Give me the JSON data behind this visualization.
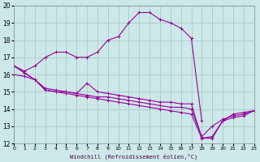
{
  "xlabel": "Windchill (Refroidissement éolien,°C)",
  "xlim": [
    0,
    23
  ],
  "ylim": [
    12,
    20
  ],
  "xticks": [
    0,
    1,
    2,
    3,
    4,
    5,
    6,
    7,
    8,
    9,
    10,
    11,
    12,
    13,
    14,
    15,
    16,
    17,
    18,
    19,
    20,
    21,
    22,
    23
  ],
  "yticks": [
    12,
    13,
    14,
    15,
    16,
    17,
    18,
    19,
    20
  ],
  "bg_color": "#cce8e8",
  "grid_color": "#aacccc",
  "line_color": "#990099",
  "lines": [
    {
      "x": [
        0,
        1,
        2,
        3,
        4,
        5,
        6,
        7,
        8,
        9,
        10,
        11,
        12,
        13,
        14,
        15,
        16,
        17,
        18
      ],
      "y": [
        16.5,
        16.2,
        16.5,
        17.0,
        17.3,
        17.3,
        17.0,
        17.0,
        17.3,
        18.0,
        18.2,
        19.0,
        19.6,
        19.6,
        19.2,
        19.0,
        18.7,
        18.1,
        13.3
      ]
    },
    {
      "x": [
        0,
        1,
        2,
        3,
        4,
        5,
        6,
        7,
        8,
        9,
        10,
        11,
        12,
        13,
        14,
        15,
        16,
        17,
        18,
        19,
        20,
        21,
        22,
        23
      ],
      "y": [
        16.5,
        16.1,
        15.7,
        15.1,
        15.0,
        15.0,
        14.9,
        15.5,
        15.0,
        14.9,
        14.8,
        14.7,
        14.6,
        14.5,
        14.4,
        14.4,
        14.3,
        14.3,
        12.3,
        12.3,
        13.3,
        13.7,
        13.8,
        13.9
      ]
    },
    {
      "x": [
        0,
        1,
        2,
        3,
        4,
        5,
        6,
        7,
        8,
        9,
        10,
        11,
        12,
        13,
        14,
        15,
        16,
        17,
        18,
        19,
        20,
        21,
        22,
        23
      ],
      "y": [
        16.0,
        15.9,
        15.7,
        15.2,
        15.1,
        15.0,
        14.9,
        14.8,
        14.7,
        14.7,
        14.6,
        14.5,
        14.4,
        14.3,
        14.2,
        14.1,
        14.1,
        14.0,
        12.4,
        13.0,
        13.4,
        13.6,
        13.7,
        13.9
      ]
    },
    {
      "x": [
        0,
        1,
        2,
        3,
        4,
        5,
        6,
        7,
        8,
        9,
        10,
        11,
        12,
        13,
        14,
        15,
        16,
        17,
        18,
        19,
        20,
        21,
        22,
        23
      ],
      "y": [
        16.5,
        16.1,
        15.7,
        15.1,
        15.0,
        14.9,
        14.8,
        14.7,
        14.6,
        14.5,
        14.4,
        14.3,
        14.2,
        14.1,
        14.0,
        13.9,
        13.8,
        13.7,
        12.3,
        12.4,
        13.3,
        13.5,
        13.6,
        13.9
      ]
    }
  ]
}
